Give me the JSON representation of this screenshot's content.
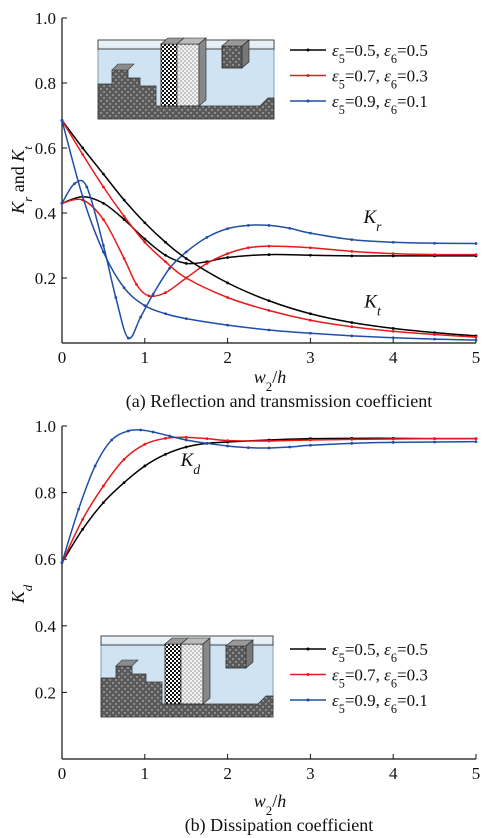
{
  "chart_data": [
    {
      "type": "line",
      "caption": "(a) Reflection and transmission coefficient",
      "xlabel": "w2/h",
      "ylabel": "Kr and Kt",
      "xlim": [
        0,
        5
      ],
      "ylim": [
        0,
        1.0
      ],
      "xticks": [
        0,
        1,
        2,
        3,
        4,
        5
      ],
      "yticks": [
        0.2,
        0.4,
        0.6,
        0.8,
        1.0
      ],
      "annotations": [
        {
          "text": "Kr",
          "x": 3.75,
          "y": 0.37
        },
        {
          "text": "Kt",
          "x": 3.75,
          "y": 0.11
        }
      ],
      "legend": {
        "placement": "top-right",
        "entries": [
          {
            "label": "ε5=0.5,  ε6=0.5",
            "color": "#000000"
          },
          {
            "label": "ε5=0.7,  ε6=0.3",
            "color": "#e8191b"
          },
          {
            "label": "ε5=0.9,  ε6=0.1",
            "color": "#1f4ea6"
          }
        ]
      },
      "series": [
        {
          "group": "Kr",
          "color": "#000000",
          "x": [
            0,
            0.25,
            0.5,
            0.75,
            1.0,
            1.25,
            1.5,
            1.75,
            2.0,
            2.5,
            3.0,
            3.5,
            4.0,
            4.5,
            5.0
          ],
          "values": [
            0.43,
            0.45,
            0.43,
            0.38,
            0.32,
            0.27,
            0.245,
            0.25,
            0.263,
            0.272,
            0.27,
            0.268,
            0.268,
            0.268,
            0.268
          ]
        },
        {
          "group": "Kr",
          "color": "#e8191b",
          "x": [
            0,
            0.25,
            0.5,
            0.75,
            0.9,
            1.05,
            1.25,
            1.5,
            1.75,
            2.0,
            2.25,
            2.5,
            3.0,
            3.5,
            4.0,
            4.5,
            5.0
          ],
          "values": [
            0.43,
            0.44,
            0.38,
            0.26,
            0.18,
            0.145,
            0.155,
            0.2,
            0.245,
            0.275,
            0.293,
            0.298,
            0.293,
            0.282,
            0.275,
            0.272,
            0.272
          ]
        },
        {
          "group": "Kr",
          "color": "#1f4ea6",
          "x": [
            0,
            0.15,
            0.3,
            0.5,
            0.65,
            0.8,
            0.95,
            1.1,
            1.3,
            1.5,
            1.75,
            2.0,
            2.25,
            2.5,
            2.75,
            3.0,
            3.5,
            4.0,
            4.5,
            5.0
          ],
          "values": [
            0.43,
            0.49,
            0.48,
            0.3,
            0.14,
            0.015,
            0.08,
            0.15,
            0.23,
            0.28,
            0.325,
            0.352,
            0.362,
            0.362,
            0.353,
            0.338,
            0.318,
            0.31,
            0.307,
            0.306
          ]
        },
        {
          "group": "Kt",
          "color": "#000000",
          "x": [
            0,
            0.25,
            0.5,
            0.75,
            1.0,
            1.25,
            1.5,
            2.0,
            2.5,
            3.0,
            3.5,
            4.0,
            4.5,
            5.0
          ],
          "values": [
            0.685,
            0.6,
            0.52,
            0.44,
            0.37,
            0.31,
            0.26,
            0.185,
            0.13,
            0.09,
            0.063,
            0.045,
            0.032,
            0.022
          ]
        },
        {
          "group": "Kt",
          "color": "#e8191b",
          "x": [
            0,
            0.25,
            0.5,
            0.75,
            1.0,
            1.25,
            1.5,
            2.0,
            2.5,
            3.0,
            3.5,
            4.0,
            4.5,
            5.0
          ],
          "values": [
            0.685,
            0.58,
            0.48,
            0.39,
            0.31,
            0.25,
            0.2,
            0.14,
            0.1,
            0.07,
            0.05,
            0.036,
            0.026,
            0.018
          ]
        },
        {
          "group": "Kt",
          "color": "#1f4ea6",
          "x": [
            0,
            0.25,
            0.5,
            0.75,
            1.0,
            1.25,
            1.5,
            2.0,
            2.5,
            3.0,
            3.5,
            4.0,
            4.5,
            5.0
          ],
          "values": [
            0.685,
            0.45,
            0.28,
            0.17,
            0.115,
            0.09,
            0.075,
            0.055,
            0.04,
            0.03,
            0.022,
            0.016,
            0.012,
            0.009
          ]
        }
      ]
    },
    {
      "type": "line",
      "caption": "(b) Dissipation coefficient",
      "xlabel": "w2/h",
      "ylabel": "Kd",
      "xlim": [
        0,
        5
      ],
      "ylim": [
        0,
        1.0
      ],
      "xticks": [
        0,
        1,
        2,
        3,
        4,
        5
      ],
      "yticks": [
        0.2,
        0.4,
        0.6,
        0.8,
        1.0
      ],
      "annotations": [
        {
          "text": "Kd",
          "x": 1.55,
          "y": 0.88
        }
      ],
      "legend": {
        "placement": "bottom-right",
        "entries": [
          {
            "label": "ε5=0.5,  ε6=0.5",
            "color": "#000000"
          },
          {
            "label": "ε5=0.7,  ε6=0.3",
            "color": "#e8191b"
          },
          {
            "label": "ε5=0.9,  ε6=0.1",
            "color": "#1f4ea6"
          }
        ]
      },
      "series": [
        {
          "color": "#000000",
          "x": [
            0,
            0.25,
            0.5,
            0.75,
            1.0,
            1.25,
            1.5,
            1.75,
            2.0,
            2.5,
            3.0,
            3.5,
            4.0,
            4.5,
            5.0
          ],
          "values": [
            0.59,
            0.69,
            0.77,
            0.83,
            0.88,
            0.915,
            0.937,
            0.948,
            0.952,
            0.958,
            0.962,
            0.963,
            0.963,
            0.962,
            0.962
          ]
        },
        {
          "color": "#e8191b",
          "x": [
            0,
            0.25,
            0.5,
            0.75,
            1.0,
            1.25,
            1.5,
            1.75,
            2.0,
            2.5,
            3.0,
            3.5,
            4.0,
            4.5,
            5.0
          ],
          "values": [
            0.59,
            0.72,
            0.82,
            0.9,
            0.945,
            0.963,
            0.966,
            0.962,
            0.956,
            0.955,
            0.958,
            0.96,
            0.961,
            0.962,
            0.962
          ]
        },
        {
          "color": "#1f4ea6",
          "x": [
            0,
            0.2,
            0.4,
            0.6,
            0.8,
            0.95,
            1.1,
            1.3,
            1.5,
            1.75,
            2.0,
            2.25,
            2.5,
            2.75,
            3.0,
            3.5,
            4.0,
            4.5,
            5.0
          ],
          "values": [
            0.59,
            0.75,
            0.88,
            0.958,
            0.985,
            0.988,
            0.982,
            0.97,
            0.958,
            0.948,
            0.94,
            0.935,
            0.934,
            0.937,
            0.942,
            0.948,
            0.951,
            0.952,
            0.953
          ]
        }
      ]
    }
  ]
}
